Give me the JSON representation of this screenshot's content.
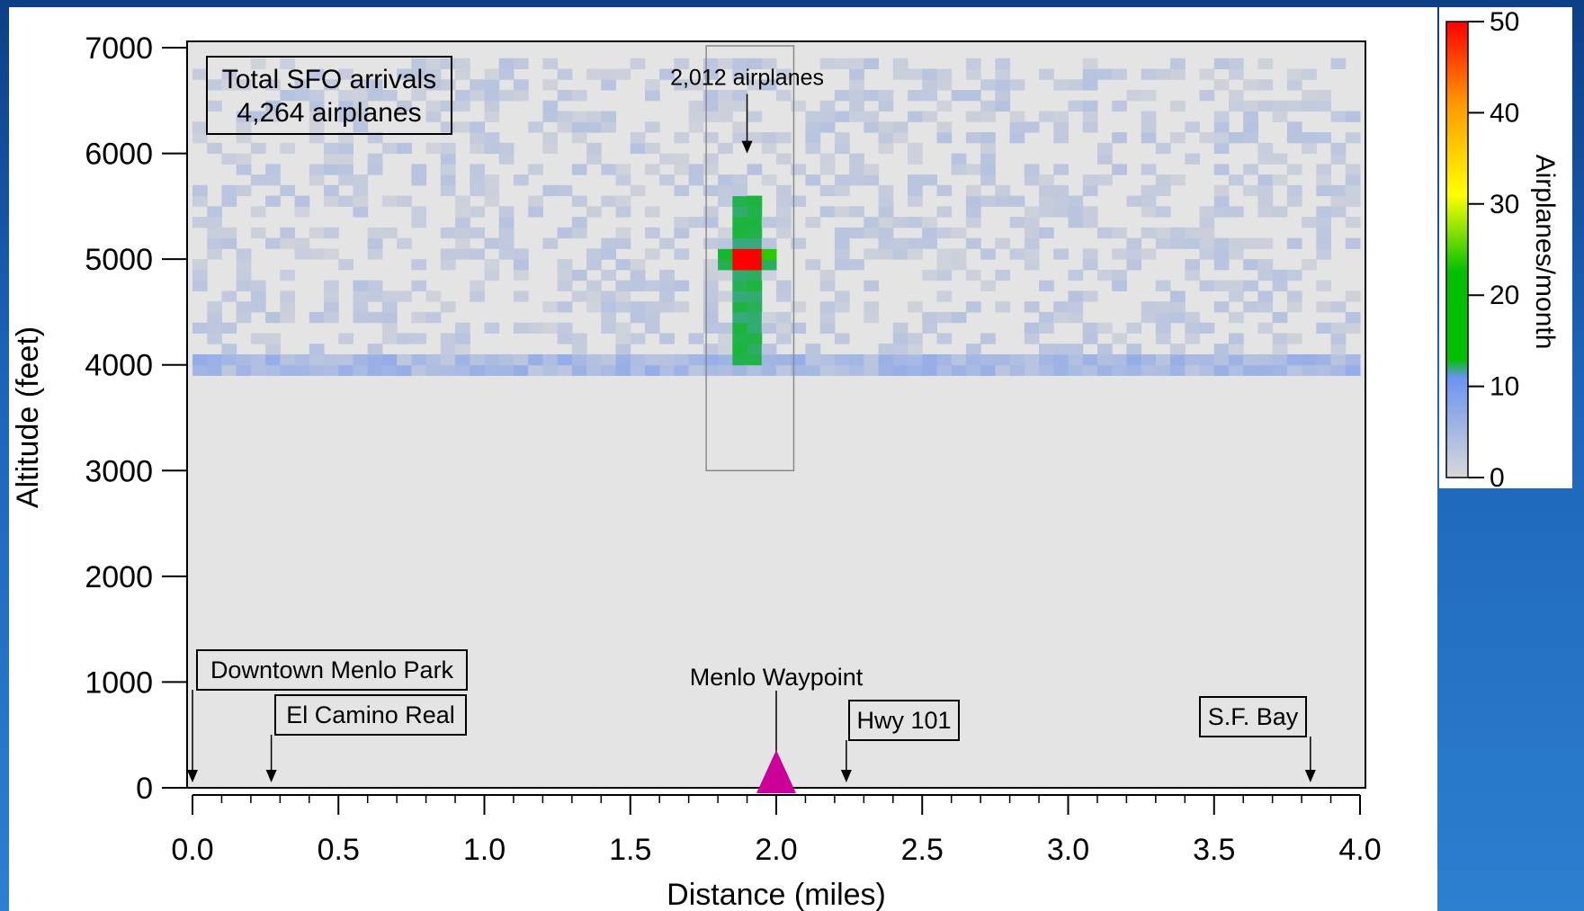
{
  "colors": {
    "background_gradient_top": "#0d3f86",
    "background_gradient_bottom": "#2d7fd0",
    "plot_background": "#e4e4e4",
    "waypoint_marker": "#cc0099",
    "colorbar_stops": [
      "#d8d8d8",
      "#6b93f0",
      "#00c000",
      "#ffff00",
      "#ff0000"
    ]
  },
  "chart_data": {
    "type": "heatmap",
    "title": "",
    "xlabel": "Distance (miles)",
    "ylabel": "Altitude (feet)",
    "xlim": [
      0.0,
      4.0
    ],
    "ylim": [
      0,
      7000
    ],
    "x_ticks": [
      "0.0",
      "0.5",
      "1.0",
      "1.5",
      "2.0",
      "2.5",
      "3.0",
      "3.5",
      "4.0"
    ],
    "y_ticks": [
      "0",
      "1000",
      "2000",
      "3000",
      "4000",
      "5000",
      "6000",
      "7000"
    ],
    "colorbar": {
      "label": "Airplanes/month",
      "range": [
        0,
        50
      ],
      "ticks": [
        "0",
        "10",
        "20",
        "30",
        "40",
        "50"
      ]
    },
    "summary_box": {
      "line1": "Total SFO arrivals",
      "line2": "4,264 airplanes"
    },
    "highlight_region": {
      "x_range": [
        1.76,
        2.06
      ],
      "y_range": [
        3000,
        7000
      ],
      "label": "2,012 airplanes",
      "arrow_target": [
        1.9,
        6000
      ]
    },
    "peak": {
      "x": 1.9,
      "y": 5000,
      "value": 50
    },
    "cross_pattern": {
      "center_x": 1.9,
      "center_y": 5000,
      "vertical_from": 4000,
      "vertical_to": 5600,
      "horizontal_from": 1.8,
      "horizontal_to": 2.0
    },
    "band_4000ft": {
      "y": 4000,
      "x_from": 0.0,
      "x_to": 3.98,
      "level": 6
    },
    "landmarks": [
      {
        "label": "Downtown Menlo Park",
        "x": 0.0
      },
      {
        "label": "El Camino Real",
        "x": 0.27
      },
      {
        "label": "Hwy 101",
        "x": 2.24
      },
      {
        "label": "S.F. Bay",
        "x": 3.83
      }
    ],
    "waypoint": {
      "label": "Menlo Waypoint",
      "x": 2.0
    }
  }
}
